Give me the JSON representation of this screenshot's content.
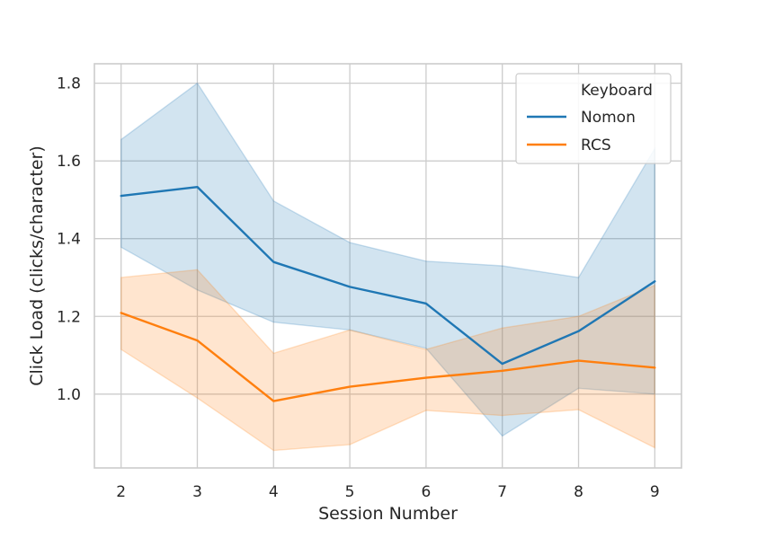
{
  "chart_data": {
    "type": "line",
    "title": "",
    "xlabel": "Session Number",
    "ylabel": "Click Load (clicks/character)",
    "x": [
      2,
      3,
      4,
      5,
      6,
      7,
      8,
      9
    ],
    "xlim": [
      1.65,
      9.35
    ],
    "ylim": [
      0.81,
      1.85
    ],
    "yticks": [
      1.0,
      1.2,
      1.4,
      1.6,
      1.8
    ],
    "grid": true,
    "legend": {
      "title": "Keyboard",
      "placement": "top-right"
    },
    "series": [
      {
        "name": "Nomon",
        "color": "#1f77b4",
        "values": [
          1.51,
          1.533,
          1.34,
          1.276,
          1.233,
          1.078,
          1.162,
          1.29
        ],
        "ci_low": [
          1.378,
          1.268,
          1.185,
          1.165,
          1.118,
          0.892,
          1.015,
          1.0
        ],
        "ci_high": [
          1.655,
          1.8,
          1.497,
          1.39,
          1.342,
          1.33,
          1.3,
          1.632
        ]
      },
      {
        "name": "RCS",
        "color": "#ff7f0e",
        "values": [
          1.209,
          1.138,
          0.982,
          1.019,
          1.042,
          1.06,
          1.086,
          1.068
        ],
        "ci_low": [
          1.115,
          0.99,
          0.855,
          0.87,
          0.958,
          0.945,
          0.96,
          0.862
        ],
        "ci_high": [
          1.3,
          1.32,
          1.105,
          1.165,
          1.115,
          1.17,
          1.2,
          1.28
        ]
      }
    ]
  }
}
